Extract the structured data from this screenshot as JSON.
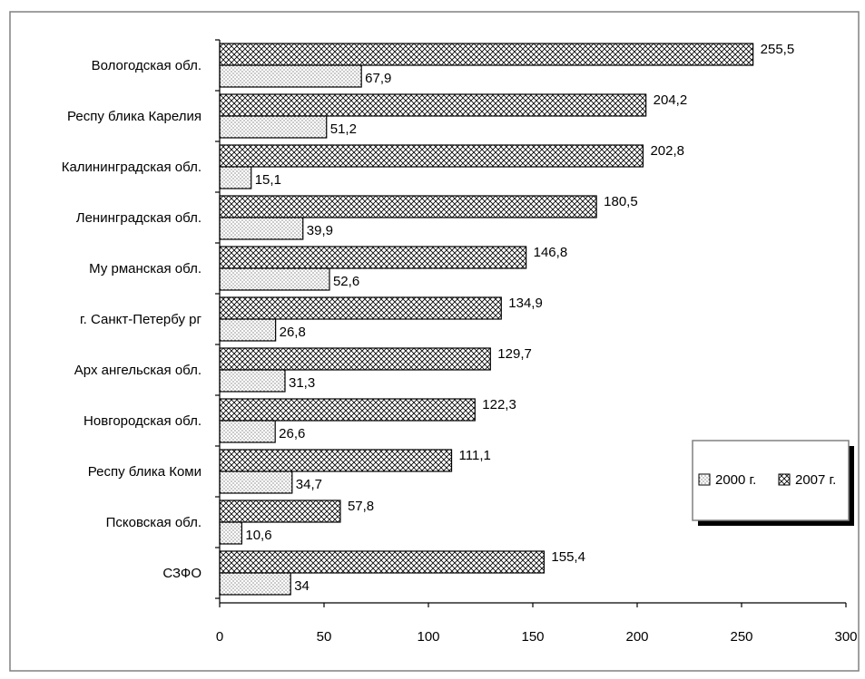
{
  "chart_data": {
    "type": "bar",
    "orientation": "horizontal",
    "categories": [
      "Вологодская обл.",
      "Респу блика Карелия",
      "Калининградская обл.",
      "Ленинградская обл.",
      "Му рманская обл.",
      "г. Санкт-Петербу рг",
      "Арх ангельская обл.",
      "Новгородская обл.",
      "Респу блика Коми",
      "Псковская обл.",
      "СЗФО"
    ],
    "series": [
      {
        "name": "2000 г.",
        "values": [
          67.9,
          51.2,
          15.1,
          39.9,
          52.6,
          26.8,
          31.3,
          26.6,
          34.7,
          10.6,
          34
        ],
        "labels": [
          "67,9",
          "51,2",
          "15,1",
          "39,9",
          "52,6",
          "26,8",
          "31,3",
          "26,6",
          "34,7",
          "10,6",
          "34"
        ],
        "pattern": "dots"
      },
      {
        "name": "2007 г.",
        "values": [
          255.5,
          204.2,
          202.8,
          180.5,
          146.8,
          134.9,
          129.7,
          122.3,
          111.1,
          57.8,
          155.4
        ],
        "labels": [
          "255,5",
          "204,2",
          "202,8",
          "180,5",
          "146,8",
          "134,9",
          "129,7",
          "122,3",
          "111,1",
          "57,8",
          "155,4"
        ],
        "pattern": "crosshatch"
      }
    ],
    "xlim": [
      0,
      300
    ],
    "xticks": [
      0,
      50,
      100,
      150,
      200,
      250,
      300
    ],
    "xtick_labels": [
      "0",
      "50",
      "100",
      "150",
      "200",
      "250",
      "300"
    ],
    "grid": false,
    "legend_position": "right",
    "colors": {
      "bar_fill": "#ffffff",
      "bar_stroke": "#000000",
      "frame": "#808080"
    }
  }
}
